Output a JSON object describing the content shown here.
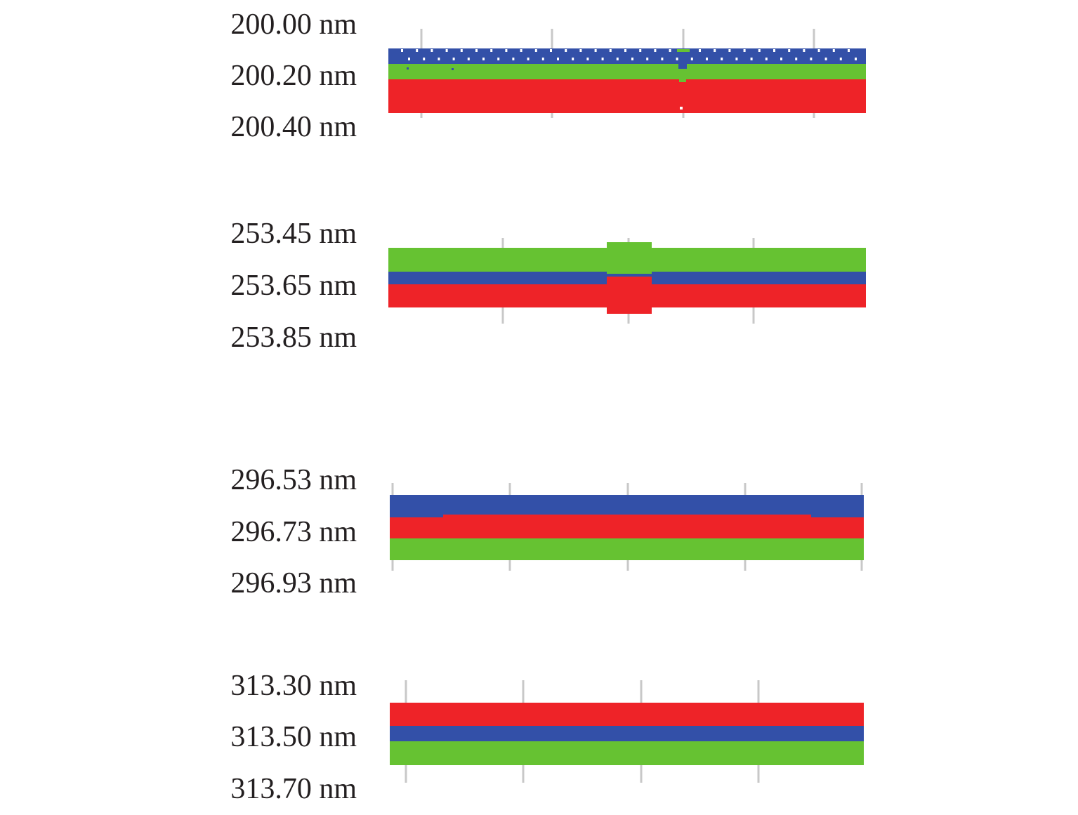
{
  "colors": {
    "blue": "#3350a8",
    "green": "#66c232",
    "red": "#ee2328",
    "tick": "#c8c8c8",
    "text": "#231f20"
  },
  "panels": [
    {
      "id": "panel-200",
      "labels": [
        "200.00 nm",
        "200.20 nm",
        "200.40 nm"
      ],
      "layer_order": [
        "blue",
        "green",
        "red"
      ],
      "features": [
        "dashed-top-edge",
        "central-defect"
      ]
    },
    {
      "id": "panel-253",
      "labels": [
        "253.45 nm",
        "253.65 nm",
        "253.85 nm"
      ],
      "layer_order": [
        "green",
        "blue",
        "red"
      ],
      "features": [
        "central-block-defect"
      ]
    },
    {
      "id": "panel-296",
      "labels": [
        "296.53 nm",
        "296.73 nm",
        "296.93 nm"
      ],
      "layer_order": [
        "blue",
        "red",
        "green"
      ],
      "features": [
        "stepped-interface"
      ]
    },
    {
      "id": "panel-313",
      "labels": [
        "313.30 nm",
        "313.50 nm",
        "313.70 nm"
      ],
      "layer_order": [
        "red",
        "blue",
        "green"
      ],
      "features": []
    }
  ]
}
